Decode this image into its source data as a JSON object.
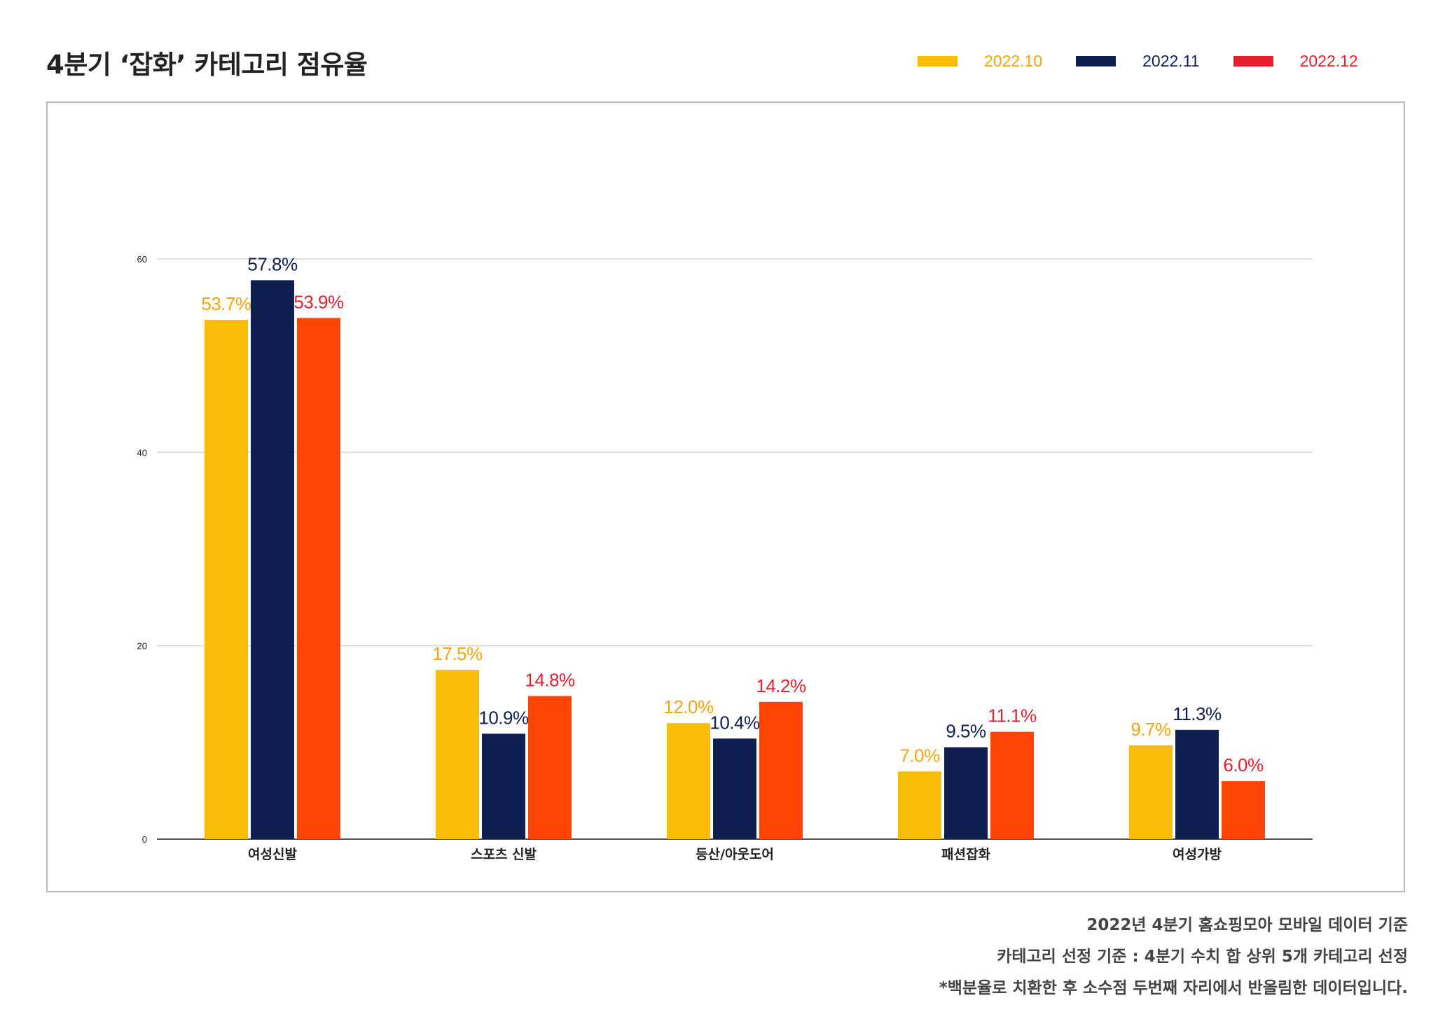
{
  "page": {
    "title": "4분기 ‘잡화’ 카테고리 점유율",
    "footnotes": [
      "2022년 4분기 홈쇼핑모아 모바일 데이터 기준",
      "카테고리 선정 기준 : 4분기 수치 합 상위 5개 카테고리 선정",
      "*백분율로 치환한 후 소수점 두번째 자리에서 반올림한 데이터입니다."
    ]
  },
  "legend": [
    {
      "label": "2022.10",
      "swatch_color": "#F9BC09",
      "text_color": "#F2A50C"
    },
    {
      "label": "2022.11",
      "swatch_color": "#0F1F51",
      "text_color": "#0F1F51"
    },
    {
      "label": "2022.12",
      "swatch_color": "#E6202F",
      "text_color": "#E6202F"
    }
  ],
  "chart_data": {
    "type": "bar",
    "title": "4분기 ‘잡화’ 카테고리 점유율",
    "xlabel": "",
    "ylabel": "",
    "ylim": [
      0,
      60
    ],
    "yticks": [
      0,
      20,
      40,
      60
    ],
    "grid": true,
    "legend_position": "top-right",
    "categories": [
      "여성신발",
      "스포츠 신발",
      "등산/아웃도어",
      "패션잡화",
      "여성가방"
    ],
    "series": [
      {
        "name": "2022.10",
        "values": [
          53.7,
          17.5,
          12.0,
          7.0,
          9.7
        ],
        "labels": [
          "53.7%",
          "17.5%",
          "12.0%",
          "7.0%",
          "9.7%"
        ],
        "bar_color": "#F9BC09",
        "label_color": "#F2A50C"
      },
      {
        "name": "2022.11",
        "values": [
          57.8,
          10.9,
          10.4,
          9.5,
          11.3
        ],
        "labels": [
          "57.8%",
          "10.9%",
          "10.4%",
          "9.5%",
          "11.3%"
        ],
        "bar_color": "#0F1F51",
        "label_color": "#0F1F51"
      },
      {
        "name": "2022.12",
        "values": [
          53.9,
          14.8,
          14.2,
          11.1,
          6.0
        ],
        "labels": [
          "53.9%",
          "14.8%",
          "14.2%",
          "11.1%",
          "6.0%"
        ],
        "bar_color": "#FF4505",
        "label_color": "#E6202F"
      }
    ]
  }
}
